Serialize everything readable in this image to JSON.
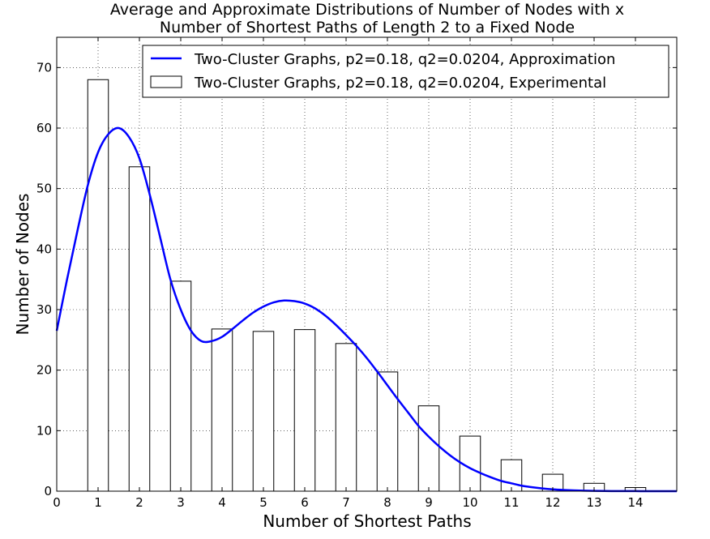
{
  "chart_data": {
    "type": "bar",
    "title_lines": [
      "Average and Approximate Distributions of Number of Nodes with x",
      "Number of Shortest Paths of Length 2 to a Fixed Node"
    ],
    "xlabel": "Number of Shortest Paths",
    "ylabel": "Number of Nodes",
    "xlim": [
      0,
      15
    ],
    "ylim": [
      0,
      75
    ],
    "x_ticks": [
      0,
      1,
      2,
      3,
      4,
      5,
      6,
      7,
      8,
      9,
      10,
      11,
      12,
      13,
      14
    ],
    "y_ticks": [
      0,
      10,
      20,
      30,
      40,
      50,
      60,
      70
    ],
    "grid": true,
    "legend_position": "top-right",
    "series": [
      {
        "name": "Two-Cluster Graphs, p2=0.18, q2=0.0204, Approximation",
        "kind": "line",
        "color": "#0000ff",
        "x": [
          0,
          0.25,
          0.5,
          0.75,
          1,
          1.25,
          1.5,
          1.75,
          2,
          2.25,
          2.5,
          2.75,
          3,
          3.25,
          3.5,
          3.75,
          4,
          4.25,
          4.5,
          4.75,
          5,
          5.25,
          5.5,
          5.75,
          6,
          6.25,
          6.5,
          6.75,
          7,
          7.25,
          7.5,
          7.75,
          8,
          8.25,
          8.5,
          8.75,
          9,
          9.25,
          9.5,
          9.75,
          10,
          10.25,
          10.5,
          10.75,
          11,
          11.25,
          11.5,
          11.75,
          12,
          12.25,
          12.5,
          12.75,
          13,
          13.25,
          13.5,
          13.75,
          14,
          14.25,
          14.5,
          14.75,
          15
        ],
        "y": [
          26.5,
          35,
          43,
          50.5,
          56,
          59,
          60,
          58.5,
          55,
          49,
          42,
          35,
          30,
          26.5,
          24.8,
          24.8,
          25.5,
          26.8,
          28.2,
          29.5,
          30.5,
          31.2,
          31.5,
          31.4,
          31,
          30.2,
          29,
          27.5,
          25.8,
          24,
          22,
          19.8,
          17.5,
          15.2,
          13,
          10.8,
          9,
          7.4,
          6,
          4.8,
          3.8,
          3,
          2.3,
          1.7,
          1.3,
          0.9,
          0.65,
          0.45,
          0.3,
          0.2,
          0.13,
          0.08,
          0.05,
          0.03,
          0.02,
          0.01,
          0.01,
          0,
          0,
          0,
          0
        ]
      },
      {
        "name": "Two-Cluster Graphs, p2=0.18, q2=0.0204, Experimental",
        "kind": "bar",
        "color": "#ffffff",
        "x": [
          1,
          2,
          3,
          4,
          5,
          6,
          7,
          8,
          9,
          10,
          11,
          12,
          13,
          14
        ],
        "values": [
          68,
          53.6,
          34.7,
          26.8,
          26.4,
          26.7,
          24.4,
          19.7,
          14.1,
          9.1,
          5.2,
          2.8,
          1.3,
          0.6
        ],
        "bar_width": 0.5
      }
    ]
  }
}
